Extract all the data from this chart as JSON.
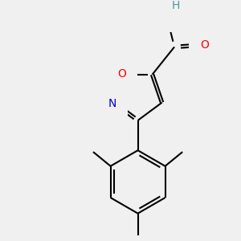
{
  "bg_color": "#f0f0f0",
  "bond_color": "#000000",
  "n_color": "#0000cd",
  "o_color": "#ff0000",
  "h_color": "#4a9a9a",
  "text_color": "#000000",
  "line_width": 1.5,
  "figsize": [
    3.0,
    3.0
  ],
  "dpi": 100,
  "xlim": [
    0,
    300
  ],
  "ylim": [
    0,
    300
  ]
}
